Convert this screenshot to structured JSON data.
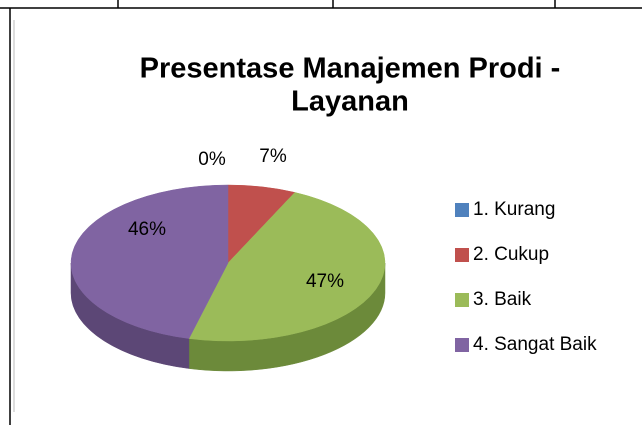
{
  "chart_data": {
    "type": "pie",
    "title": [
      "Presentase Manajemen Prodi -",
      "Layanan"
    ],
    "categories": [
      "1. Kurang",
      "2. Cukup",
      "3. Baik",
      "4. Sangat Baik"
    ],
    "values": [
      0,
      7,
      47,
      46
    ],
    "value_labels": [
      "0%",
      "7%",
      "47%",
      "46%"
    ],
    "colors": [
      "#4f81bd",
      "#c0504d",
      "#9bbb59",
      "#8064a2"
    ],
    "side_colors": [
      "#385d8a",
      "#8c3836",
      "#6c8a3a",
      "#5c4776"
    ],
    "legend": "right"
  }
}
